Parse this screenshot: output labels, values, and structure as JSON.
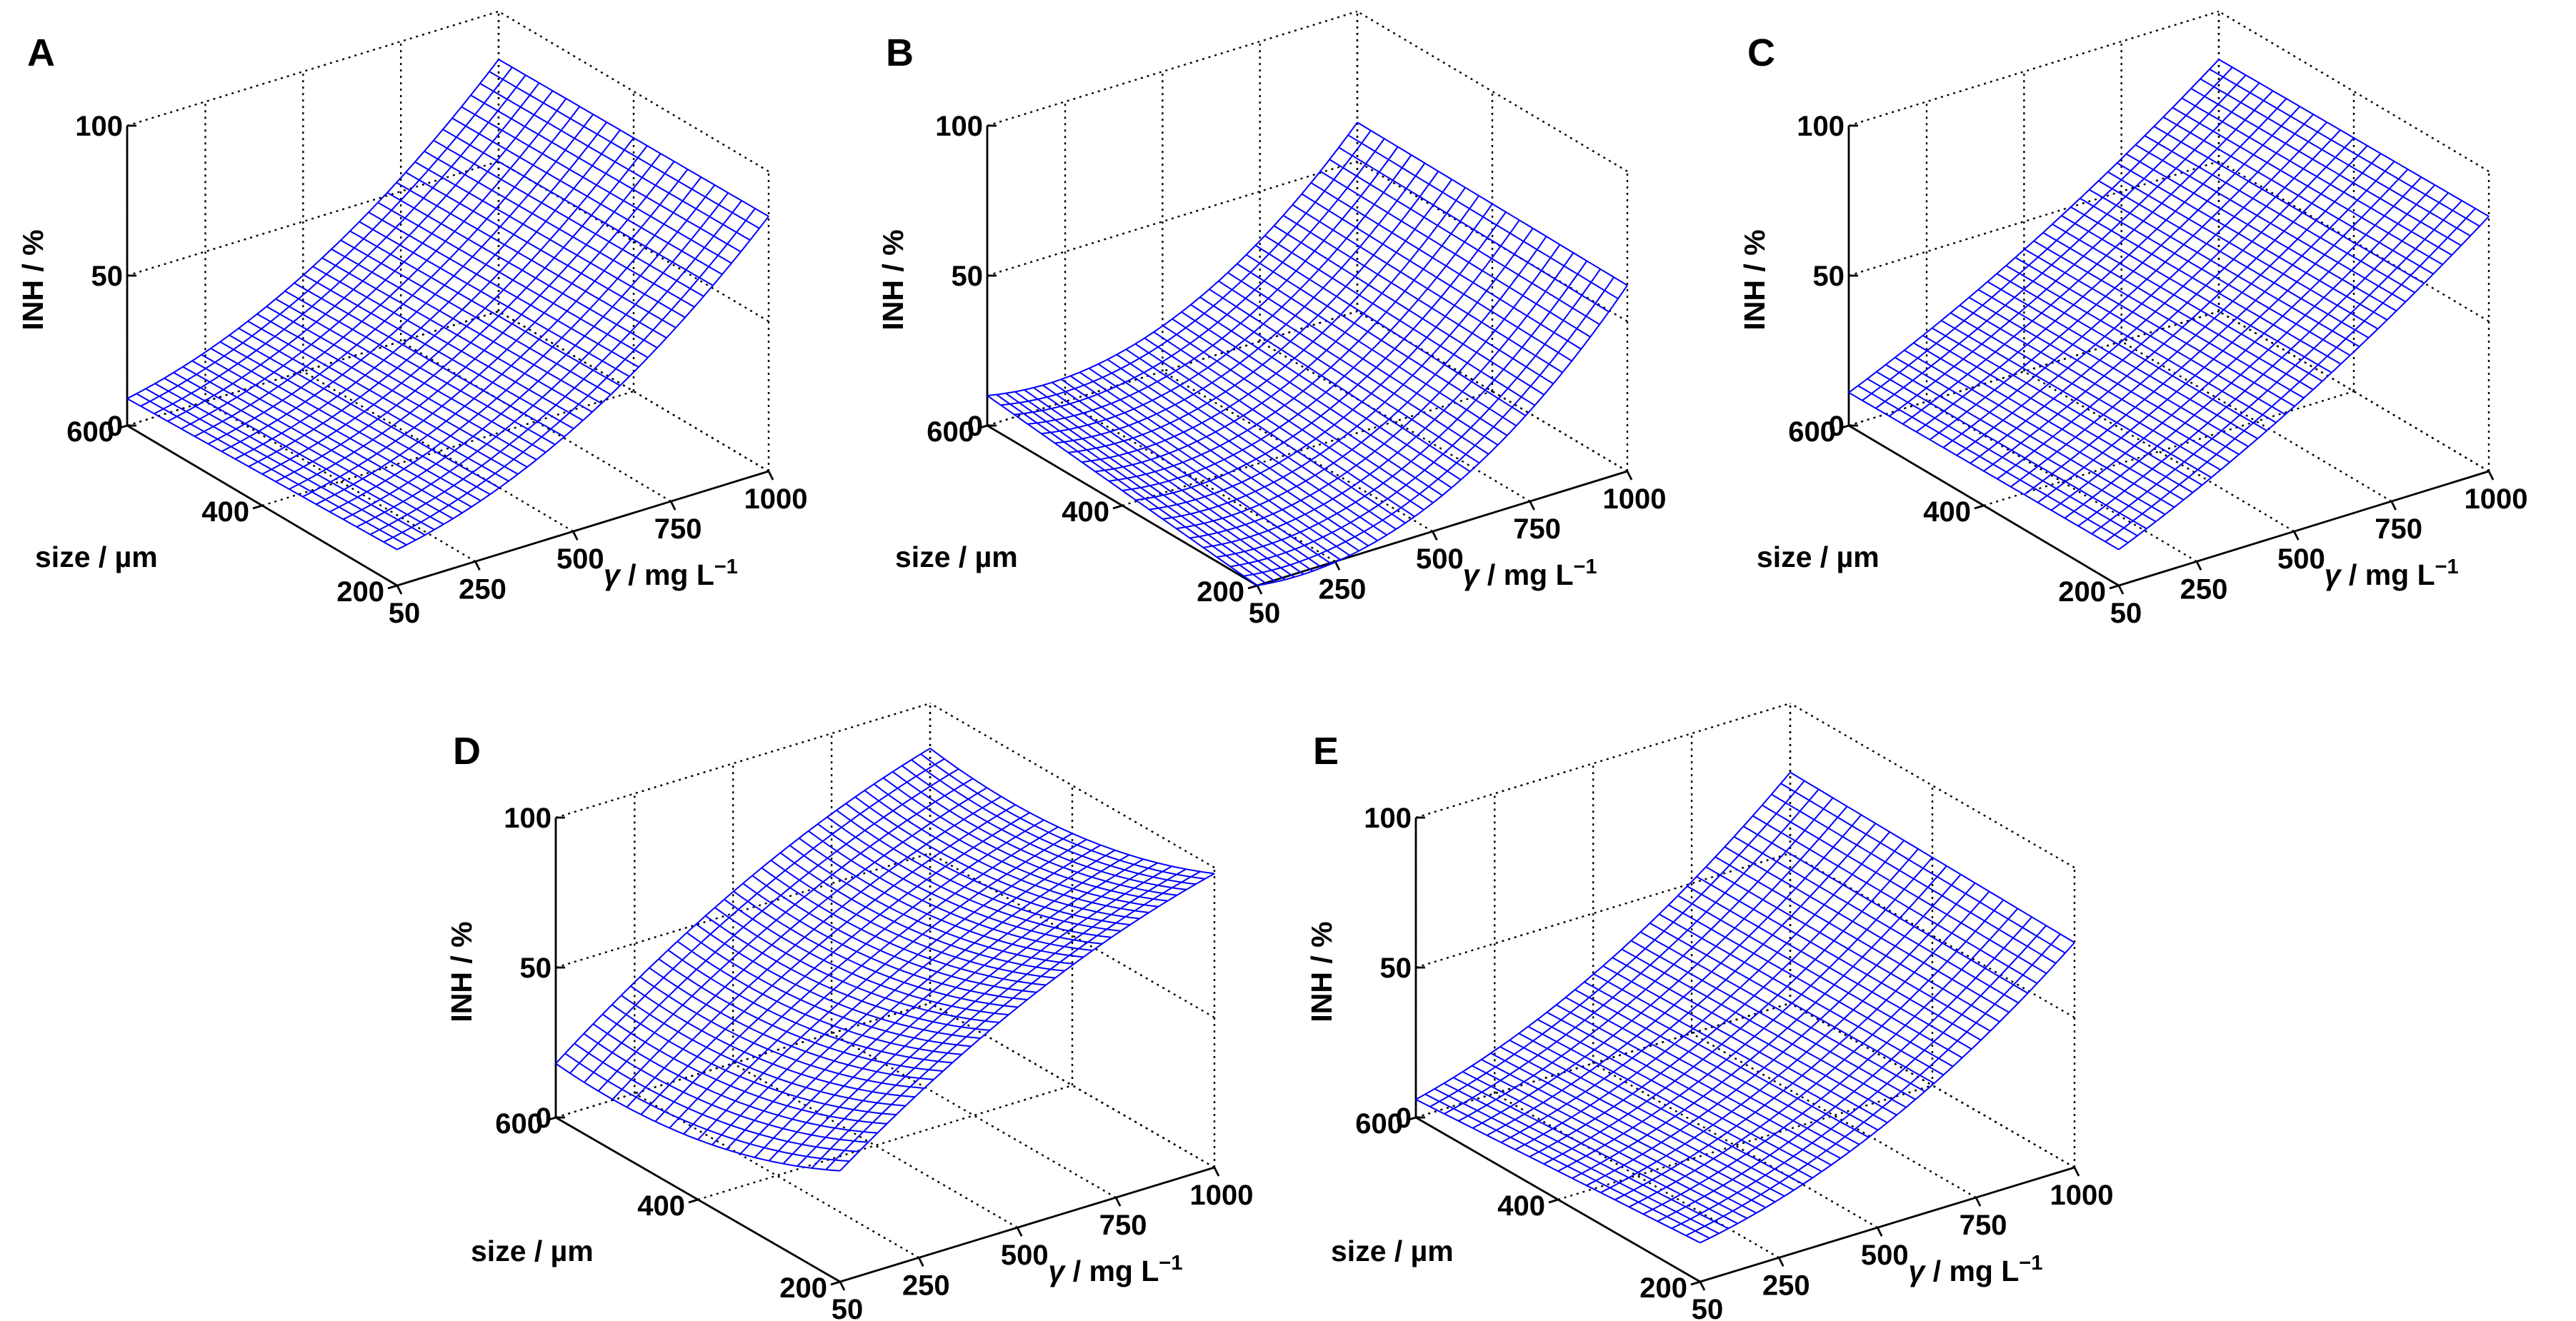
{
  "figure": {
    "description_note": "Five 3-D mesh surface panels of inhibition efficiency vs. particle size and inhibitor mass concentration",
    "mesh_color": "#0000ff",
    "axis_color": "#000000"
  },
  "chart_data": [
    {
      "panel": "A",
      "type": "surface",
      "zlabel": "INH / %",
      "ylabel": "size / µm",
      "xlabel_symbol": "γ",
      "xlabel_rest": " / mg L",
      "xlabel_sup": "−1",
      "xlim": [
        50,
        1000
      ],
      "ylim": [
        200,
        600
      ],
      "zlim": [
        0,
        100
      ],
      "xticks": [
        50,
        250,
        500,
        750,
        1000
      ],
      "yticks": [
        200,
        400,
        600
      ],
      "zticks": [
        0,
        50,
        100
      ],
      "mesh": {
        "x_lines": 41,
        "y_lines": 21
      },
      "corner_values": {
        "x50_y600": 9,
        "x50_y200": 12,
        "x1000_y600": 84,
        "x1000_y200": 85
      },
      "curvature_x": -50
    },
    {
      "panel": "B",
      "type": "surface",
      "zlabel": "INH / %",
      "ylabel": "size / µm",
      "xlabel_symbol": "γ",
      "xlabel_rest": " / mg L",
      "xlabel_sup": "−1",
      "xlim": [
        50,
        1000
      ],
      "ylim": [
        200,
        600
      ],
      "zlim": [
        0,
        100
      ],
      "xticks": [
        50,
        250,
        500,
        750,
        1000
      ],
      "yticks": [
        200,
        400,
        600
      ],
      "zticks": [
        0,
        50,
        100
      ],
      "mesh": {
        "x_lines": 41,
        "y_lines": 21
      },
      "corner_values": {
        "x50_y600": 10,
        "x50_y200": 0,
        "x1000_y600": 63,
        "x1000_y200": 62
      },
      "curvature_x": -80
    },
    {
      "panel": "C",
      "type": "surface",
      "zlabel": "INH / %",
      "ylabel": "size / µm",
      "xlabel_symbol": "γ",
      "xlabel_rest": " / mg L",
      "xlabel_sup": "−1",
      "xlim": [
        50,
        1000
      ],
      "ylim": [
        200,
        600
      ],
      "zlim": [
        0,
        100
      ],
      "xticks": [
        50,
        250,
        500,
        750,
        1000
      ],
      "yticks": [
        200,
        400,
        600
      ],
      "zticks": [
        0,
        50,
        100
      ],
      "mesh": {
        "x_lines": 41,
        "y_lines": 21
      },
      "corner_values": {
        "x50_y600": 11,
        "x50_y200": 12,
        "x1000_y600": 84,
        "x1000_y200": 85
      },
      "curvature_x": -20
    },
    {
      "panel": "D",
      "type": "surface",
      "zlabel": "INH / %",
      "ylabel": "size / µm",
      "xlabel_symbol": "γ",
      "xlabel_rest": " / mg L",
      "xlabel_sup": "−1",
      "xlim": [
        50,
        1000
      ],
      "ylim": [
        200,
        600
      ],
      "zlim": [
        0,
        100
      ],
      "xticks": [
        50,
        250,
        500,
        750,
        1000
      ],
      "yticks": [
        200,
        400,
        600
      ],
      "zticks": [
        0,
        50,
        100
      ],
      "mesh": {
        "x_lines": 41,
        "y_lines": 21
      },
      "corner_values": {
        "x50_y600": 18,
        "x50_y200": 37,
        "x1000_y600": 85,
        "x1000_y200": 98
      },
      "curvature_x": 30,
      "curvature_y": -30
    },
    {
      "panel": "E",
      "type": "surface",
      "zlabel": "INH / %",
      "ylabel": "size / µm",
      "xlabel_symbol": "γ",
      "xlabel_rest": " / mg L",
      "xlabel_sup": "−1",
      "xlim": [
        50,
        1000
      ],
      "ylim": [
        200,
        600
      ],
      "zlim": [
        0,
        100
      ],
      "xticks": [
        50,
        250,
        500,
        750,
        1000
      ],
      "yticks": [
        200,
        400,
        600
      ],
      "zticks": [
        0,
        50,
        100
      ],
      "mesh": {
        "x_lines": 41,
        "y_lines": 21
      },
      "corner_values": {
        "x50_y600": 6,
        "x50_y200": 13,
        "x1000_y600": 77,
        "x1000_y200": 75
      },
      "curvature_x": -40
    }
  ]
}
